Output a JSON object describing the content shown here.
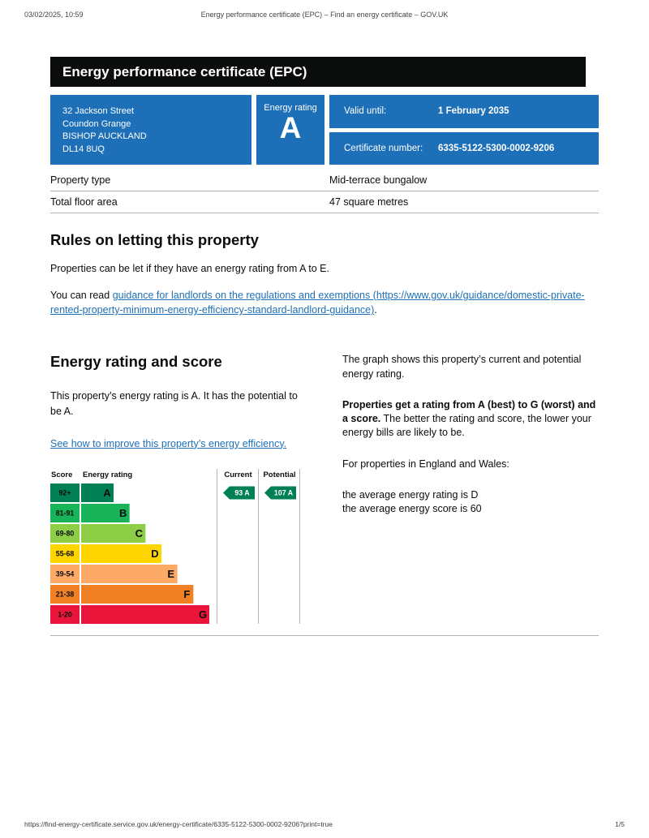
{
  "print_header": {
    "datetime": "03/02/2025, 10:59",
    "title": "Energy performance certificate (EPC) – Find an energy certificate – GOV.UK"
  },
  "print_footer": {
    "url": "https://find-energy-certificate.service.gov.uk/energy-certificate/6335-5122-5300-0002-9206?print=true",
    "page_indicator": "1/5"
  },
  "banner": {
    "title": "Energy performance certificate (EPC)"
  },
  "summary": {
    "address_lines": [
      "32 Jackson Street",
      "Coundon Grange",
      "BISHOP AUCKLAND",
      "DL14 8UQ"
    ],
    "energy_rating_label": "Energy rating",
    "energy_rating": "A",
    "valid_until_label": "Valid until:",
    "valid_until_value": "1 February 2035",
    "certificate_number_label": "Certificate number:",
    "certificate_number_value": "6335-5122-5300-0002-9206"
  },
  "property_details": {
    "rows": [
      {
        "label": "Property type",
        "value": "Mid-terrace bungalow"
      },
      {
        "label": "Total floor area",
        "value": "47 square metres"
      }
    ]
  },
  "rules_section": {
    "heading": "Rules on letting this property",
    "para1": "Properties can be let if they have an energy rating from A to E.",
    "para2_prefix": "You can read ",
    "para2_link_text": "guidance for landlords on the regulations and exemptions (https://www.gov.uk/guidance/domestic-private-rented-property-minimum-energy-efficiency-standard-landlord-guidance)",
    "para2_suffix": "."
  },
  "rating_section": {
    "heading": "Energy rating and score",
    "left_para": "This property’s energy rating is A. It has the potential to be A.",
    "improve_link_text": "See how to improve this property’s energy efficiency.",
    "right_para1": "The graph shows this property’s current and potential energy rating.",
    "right_para2_bold": "Properties get a rating from A (best) to G (worst) and a score.",
    "right_para2_rest": " The better the rating and score, the lower your energy bills are likely to be.",
    "right_para3": "For properties in England and Wales:",
    "right_para4_line1": "the average energy rating is D",
    "right_para4_line2": "the average energy score is 60"
  },
  "chart_data": {
    "type": "bar",
    "title": "Energy rating and score",
    "headers": {
      "score": "Score",
      "rating": "Energy rating",
      "current": "Current",
      "potential": "Potential"
    },
    "bands": [
      {
        "score_range": "92+",
        "letter": "A",
        "color": "#008054"
      },
      {
        "score_range": "81-91",
        "letter": "B",
        "color": "#19b459"
      },
      {
        "score_range": "69-80",
        "letter": "C",
        "color": "#8dce46"
      },
      {
        "score_range": "55-68",
        "letter": "D",
        "color": "#ffd500"
      },
      {
        "score_range": "39-54",
        "letter": "E",
        "color": "#fcaa65"
      },
      {
        "score_range": "21-38",
        "letter": "F",
        "color": "#ef8023"
      },
      {
        "score_range": "1-20",
        "letter": "G",
        "color": "#e9153b"
      }
    ],
    "current": {
      "score": 93,
      "letter": "A",
      "band_index": 0,
      "color": "#008054"
    },
    "potential": {
      "score": 107,
      "letter": "A",
      "band_index": 0,
      "color": "#008054"
    }
  },
  "colors": {
    "govuk_blue": "#1d70b8",
    "banner_black": "#0b0c0c",
    "rule_grey": "#b1b4b6",
    "link_blue": "#1d70b8"
  }
}
